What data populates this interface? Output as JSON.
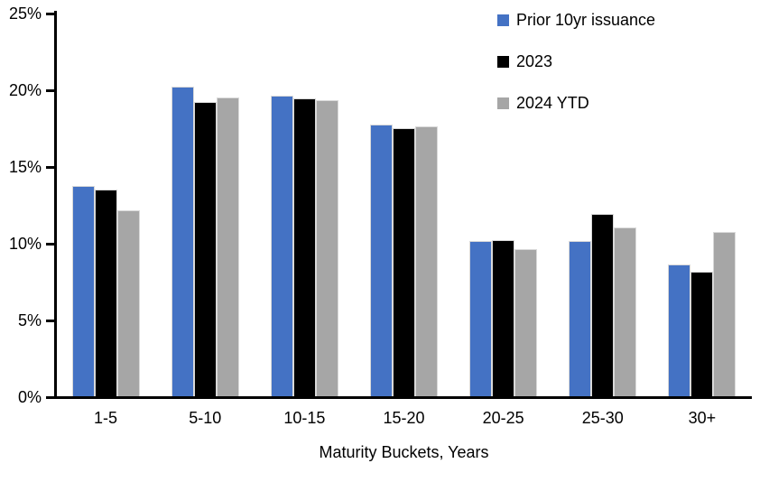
{
  "chart_data": {
    "type": "bar",
    "title": "",
    "xlabel": "Maturity Buckets, Years",
    "ylabel": "",
    "categories": [
      "1-5",
      "5-10",
      "10-15",
      "15-20",
      "20-25",
      "25-30",
      "30+"
    ],
    "series": [
      {
        "name": "Prior 10yr issuance",
        "color": "#4472C4",
        "values": [
          13.7,
          20.2,
          19.6,
          17.7,
          10.1,
          10.1,
          8.6
        ]
      },
      {
        "name": "2023",
        "color": "#000000",
        "values": [
          13.5,
          19.2,
          19.4,
          17.5,
          10.2,
          11.9,
          8.1
        ]
      },
      {
        "name": "2024 YTD",
        "color": "#A6A6A6",
        "values": [
          12.1,
          19.5,
          19.3,
          17.6,
          9.6,
          11.0,
          10.7
        ]
      }
    ],
    "ylim": [
      0,
      25
    ],
    "ytick_step": 5,
    "ytick_labels": [
      "0%",
      "5%",
      "10%",
      "15%",
      "20%",
      "25%"
    ],
    "grid": false,
    "legend_position": "top-right",
    "axis_color": "#000000",
    "background_color": "#FFFFFF"
  }
}
